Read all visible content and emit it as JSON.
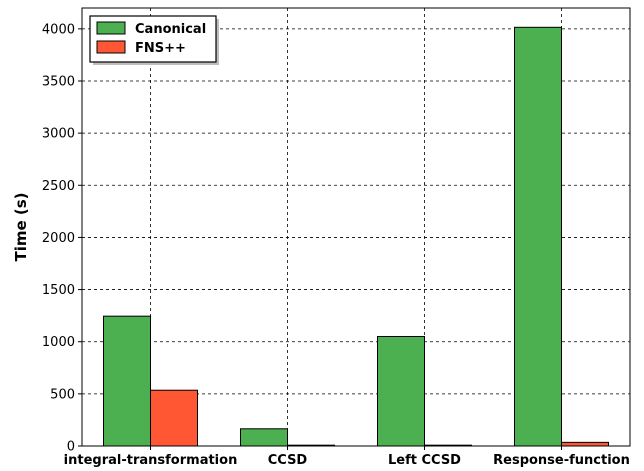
{
  "chart_data": {
    "type": "bar",
    "categories": [
      "integral-transformation",
      "CCSD",
      "Left CCSD",
      "Response-function"
    ],
    "series": [
      {
        "name": "Canonical",
        "color": "#4caf50",
        "values": [
          1245,
          165,
          1050,
          4015
        ]
      },
      {
        "name": "FNS++",
        "color": "#ff5733",
        "values": [
          535,
          8,
          8,
          35
        ]
      }
    ],
    "ylabel": "Time (s)",
    "xlabel": "",
    "ylim": [
      0,
      4200
    ],
    "yticks": [
      0,
      500,
      1000,
      1500,
      2000,
      2500,
      3000,
      3500,
      4000
    ],
    "grid": true,
    "legend": "top-left"
  }
}
